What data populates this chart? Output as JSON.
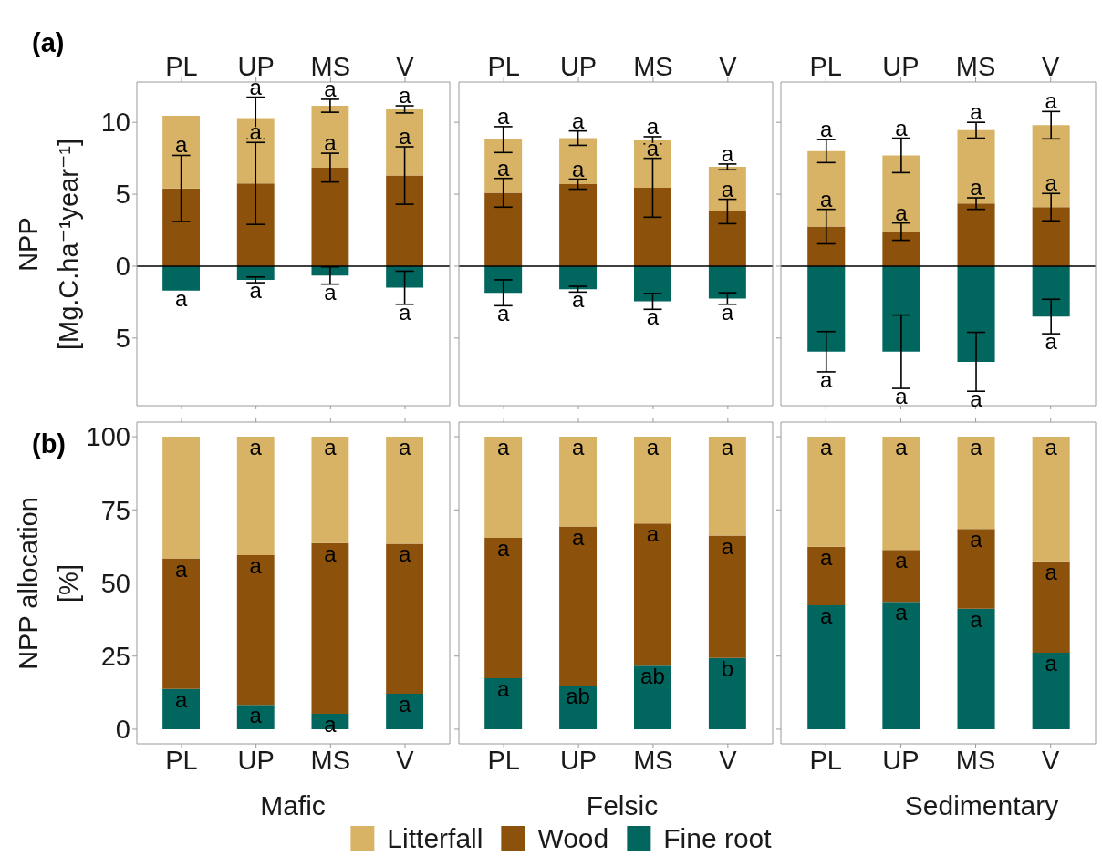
{
  "chart_data": [
    {
      "type": "bar",
      "title": "(a)",
      "ylabel": "NPP [Mg.C.ha⁻¹year⁻¹]",
      "categories": [
        "PL",
        "UP",
        "MS",
        "V"
      ],
      "stacked": true,
      "ylim": [
        -9.7,
        12.8
      ],
      "yticks": [
        {
          "value": -5,
          "label": "5"
        },
        0,
        5,
        10
      ],
      "ref_lines": [
        {
          "axis": "y",
          "value": 0,
          "color": "#000000"
        }
      ],
      "series": [
        {
          "color": "#01665e",
          "values": [
            -1.7,
            -0.95,
            -0.65,
            -1.5
          ],
          "errors": [
            null,
            0.2,
            0.6,
            1.15
          ],
          "value_labels": [
            "a",
            "a",
            "a",
            "a"
          ]
        },
        {
          "color": "#8c510a",
          "values": [
            5.4,
            5.75,
            6.85,
            6.3
          ],
          "errors": [
            2.3,
            2.85,
            1.0,
            2.0
          ],
          "value_labels": [
            "a",
            "a",
            "a",
            "a"
          ]
        },
        {
          "color": "#d8b365",
          "values": [
            5.05,
            4.55,
            4.3,
            4.6
          ],
          "errors": [
            null,
            1.45,
            0.45,
            0.25
          ],
          "value_labels": [
            null,
            "a",
            "a",
            "a"
          ]
        }
      ]
    },
    {
      "type": "bar",
      "categories": [
        "PL",
        "UP",
        "MS",
        "V"
      ],
      "stacked": true,
      "ylim": [
        -9.7,
        12.8
      ],
      "yticks": [
        -5,
        0,
        5,
        10
      ],
      "tick_labels": "x",
      "ref_lines": [
        {
          "axis": "y",
          "value": 0,
          "color": "#000000"
        }
      ],
      "series": [
        {
          "color": "#01665e",
          "values": [
            -1.85,
            -1.6,
            -2.45,
            -2.25
          ],
          "errors": [
            0.9,
            0.2,
            0.55,
            0.4
          ],
          "value_labels": [
            "a",
            "a",
            "a",
            "a"
          ]
        },
        {
          "color": "#8c510a",
          "values": [
            5.1,
            5.7,
            5.45,
            3.8
          ],
          "errors": [
            1.0,
            0.35,
            2.05,
            0.85
          ],
          "value_labels": [
            "a",
            "a",
            "a",
            "a"
          ]
        },
        {
          "color": "#d8b365",
          "values": [
            3.7,
            3.2,
            3.3,
            3.1
          ],
          "errors": [
            0.9,
            0.5,
            0.25,
            0.2
          ],
          "value_labels": [
            "a",
            "a",
            "a",
            "a"
          ]
        }
      ]
    },
    {
      "type": "bar",
      "categories": [
        "PL",
        "UP",
        "MS",
        "V"
      ],
      "stacked": true,
      "ylim": [
        -9.7,
        12.8
      ],
      "yticks": [
        -5,
        0,
        5,
        10
      ],
      "tick_labels": "x",
      "ref_lines": [
        {
          "axis": "y",
          "value": 0,
          "color": "#000000"
        }
      ],
      "series": [
        {
          "color": "#01665e",
          "values": [
            -5.95,
            -5.95,
            -6.65,
            -3.5
          ],
          "errors": [
            1.4,
            2.55,
            2.05,
            1.2
          ],
          "value_labels": [
            "a",
            "a",
            "a",
            "a"
          ]
        },
        {
          "color": "#8c510a",
          "values": [
            2.75,
            2.4,
            4.35,
            4.1
          ],
          "errors": [
            1.2,
            0.6,
            0.4,
            0.95
          ],
          "value_labels": [
            "a",
            "a",
            "a",
            "a"
          ]
        },
        {
          "color": "#d8b365",
          "values": [
            5.25,
            5.3,
            5.1,
            5.7
          ],
          "errors": [
            0.8,
            1.2,
            0.55,
            0.95
          ],
          "value_labels": [
            "a",
            "a",
            "a",
            "a"
          ]
        }
      ]
    },
    {
      "type": "bar",
      "title": "(b)",
      "ylabel": "NPP allocation [%]",
      "xlabel": "Mafic",
      "categories": [
        "PL",
        "UP",
        "MS",
        "V"
      ],
      "stacked": true,
      "ylim": [
        -5,
        105
      ],
      "yticks": [
        0,
        25,
        50,
        75,
        100
      ],
      "series": [
        {
          "color": "#01665e",
          "values": [
            13.8,
            8.3,
            5.3,
            12.1
          ],
          "value_labels": [
            "a",
            "a",
            "a",
            "a"
          ]
        },
        {
          "color": "#8c510a",
          "values": [
            44.6,
            51.2,
            58.3,
            51.3
          ],
          "value_labels": [
            "a",
            "a",
            "a",
            "a"
          ]
        },
        {
          "color": "#d8b365",
          "values": [
            41.6,
            40.5,
            36.4,
            36.6
          ],
          "value_labels": [
            null,
            "a",
            "a",
            "a"
          ]
        }
      ]
    },
    {
      "type": "bar",
      "xlabel": "Felsic",
      "categories": [
        "PL",
        "UP",
        "MS",
        "V"
      ],
      "stacked": true,
      "ylim": [
        -5,
        105
      ],
      "yticks": [
        0,
        25,
        50,
        75,
        100
      ],
      "tick_labels": "x",
      "legend": "bottom",
      "series": [
        {
          "name": "Fine root",
          "color": "#01665e",
          "values": [
            17.4,
            14.8,
            21.7,
            24.4
          ],
          "value_labels": [
            "a",
            "ab",
            "ab",
            "b"
          ]
        },
        {
          "name": "Wood",
          "color": "#8c510a",
          "values": [
            48.0,
            54.5,
            48.6,
            41.8
          ],
          "value_labels": [
            "a",
            "a",
            "a",
            "a"
          ]
        },
        {
          "name": "Litterfall",
          "color": "#d8b365",
          "values": [
            34.6,
            30.7,
            29.7,
            33.8
          ],
          "value_labels": [
            "a",
            "a",
            "a",
            "a"
          ]
        }
      ]
    },
    {
      "type": "bar",
      "xlabel": "Sedimentary",
      "categories": [
        "PL",
        "UP",
        "MS",
        "V"
      ],
      "stacked": true,
      "ylim": [
        -5,
        105
      ],
      "yticks": [
        0,
        25,
        50,
        75,
        100
      ],
      "tick_labels": "x",
      "series": [
        {
          "color": "#01665e",
          "values": [
            42.4,
            43.5,
            41.2,
            26.2
          ],
          "value_labels": [
            "a",
            "a",
            "a",
            "a"
          ]
        },
        {
          "color": "#8c510a",
          "values": [
            20.0,
            17.8,
            27.3,
            31.2
          ],
          "value_labels": [
            "a",
            "a",
            "a",
            "a"
          ]
        },
        {
          "color": "#d8b365",
          "values": [
            37.6,
            38.7,
            31.5,
            42.6
          ],
          "value_labels": [
            "a",
            "a",
            "a",
            "a"
          ]
        }
      ]
    }
  ]
}
